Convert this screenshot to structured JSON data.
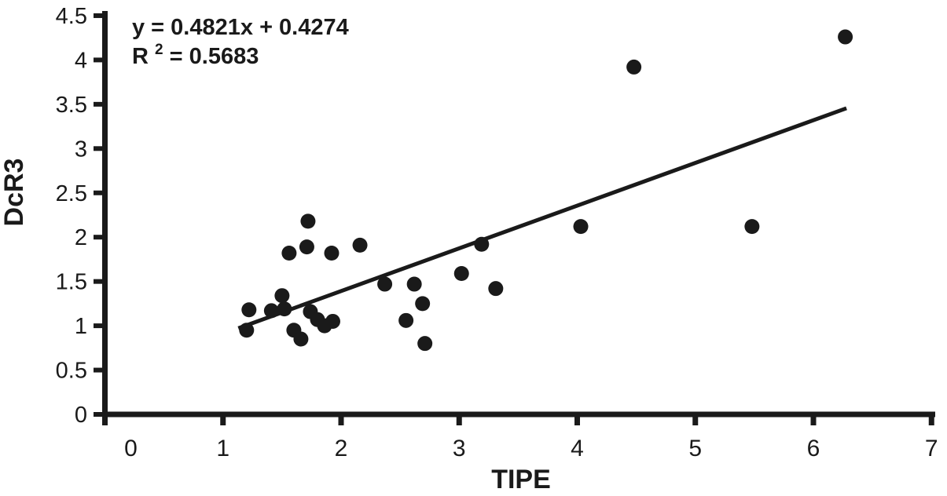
{
  "colors": {
    "ink": "#1a1a1a",
    "background": "#ffffff"
  },
  "chart_data": {
    "type": "scatter",
    "title": "",
    "xlabel": "TIPE",
    "ylabel": "DcR3",
    "xlim": [
      0,
      7
    ],
    "ylim": [
      0,
      4.5
    ],
    "x_ticks": [
      0,
      1,
      2,
      3,
      4,
      5,
      6,
      7
    ],
    "y_ticks": [
      0,
      0.5,
      1,
      1.5,
      2,
      2.5,
      3,
      3.5,
      4,
      4.5
    ],
    "grid": false,
    "legend": "none",
    "marker_style": "filled-black-circle",
    "points": [
      [
        1.2,
        0.95
      ],
      [
        1.22,
        1.18
      ],
      [
        1.41,
        1.17
      ],
      [
        1.5,
        1.34
      ],
      [
        1.52,
        1.19
      ],
      [
        1.56,
        1.82
      ],
      [
        1.6,
        0.95
      ],
      [
        1.66,
        0.85
      ],
      [
        1.71,
        1.89
      ],
      [
        1.72,
        2.18
      ],
      [
        1.74,
        1.16
      ],
      [
        1.8,
        1.07
      ],
      [
        1.86,
        1.0
      ],
      [
        1.92,
        1.82
      ],
      [
        1.93,
        1.05
      ],
      [
        2.16,
        1.91
      ],
      [
        2.37,
        1.47
      ],
      [
        2.55,
        1.06
      ],
      [
        2.62,
        1.47
      ],
      [
        2.69,
        1.25
      ],
      [
        2.71,
        0.8
      ],
      [
        3.02,
        1.59
      ],
      [
        3.19,
        1.92
      ],
      [
        3.31,
        1.42
      ],
      [
        4.03,
        2.12
      ],
      [
        4.48,
        3.92
      ],
      [
        5.48,
        2.12
      ],
      [
        6.27,
        4.26
      ]
    ],
    "trendline": {
      "type": "linear",
      "slope": 0.4821,
      "intercept": 0.4274,
      "x_start": 1.13,
      "x_end": 6.28
    },
    "annotations": {
      "equation": "y = 0.4821x + 0.4274",
      "r2_prefix": "R",
      "r2_sup": "2",
      "r2_rest": " = 0.5683",
      "r2_value": 0.5683
    }
  }
}
